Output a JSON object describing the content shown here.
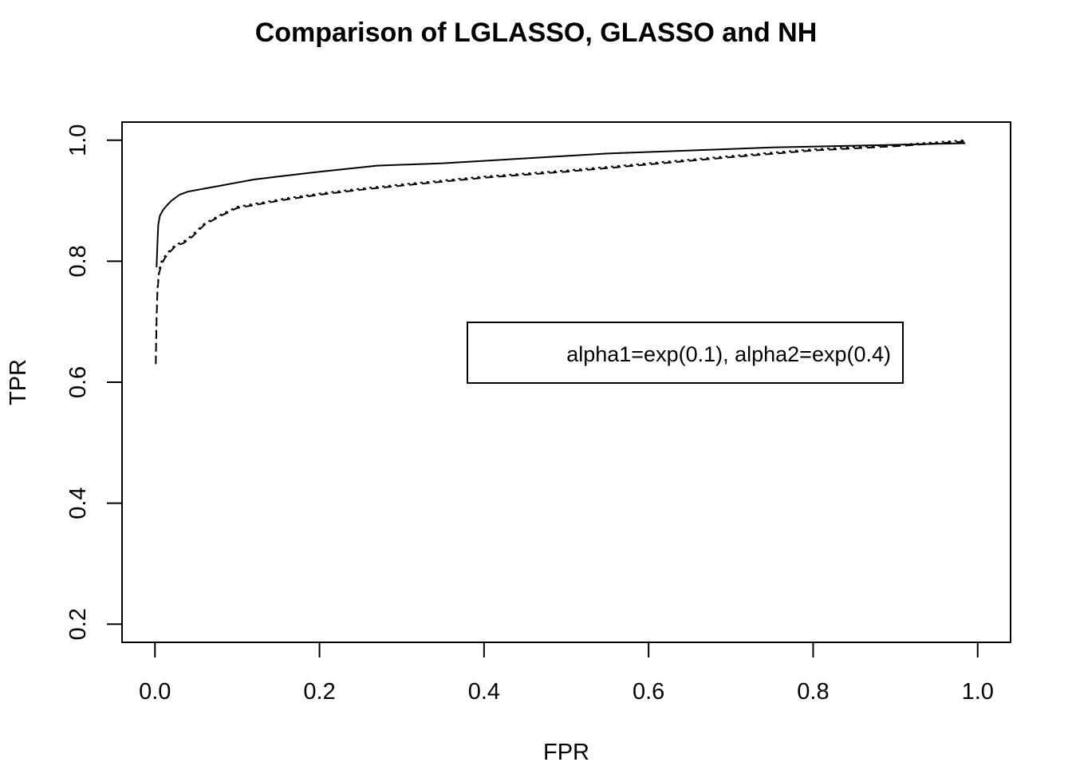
{
  "chart_data": {
    "type": "line",
    "title": "Comparison of LGLASSO, GLASSO  and NH",
    "xlabel": "FPR",
    "ylabel": "TPR",
    "xlim": [
      -0.04,
      1.04
    ],
    "ylim": [
      0.17,
      1.03
    ],
    "x_ticks": [
      0.0,
      0.2,
      0.4,
      0.6,
      0.8,
      1.0
    ],
    "x_tick_labels": [
      "0.0",
      "0.2",
      "0.4",
      "0.6",
      "0.8",
      "1.0"
    ],
    "y_ticks": [
      0.2,
      0.4,
      0.6,
      0.8,
      1.0
    ],
    "y_tick_labels": [
      "0.2",
      "0.4",
      "0.6",
      "0.8",
      "1.0"
    ],
    "grid": false,
    "legend": {
      "placement": "center-right",
      "entries": [
        "alpha1=exp(0.1), alpha2=exp(0.4)"
      ]
    },
    "series": [
      {
        "style": "solid",
        "x": [
          0.002,
          0.003,
          0.004,
          0.006,
          0.01,
          0.015,
          0.02,
          0.03,
          0.04,
          0.06,
          0.08,
          0.1,
          0.12,
          0.15,
          0.2,
          0.27,
          0.35,
          0.45,
          0.55,
          0.65,
          0.75,
          0.85,
          0.95,
          0.985
        ],
        "y": [
          0.79,
          0.83,
          0.86,
          0.875,
          0.885,
          0.893,
          0.9,
          0.91,
          0.915,
          0.92,
          0.925,
          0.93,
          0.935,
          0.94,
          0.948,
          0.958,
          0.962,
          0.97,
          0.978,
          0.983,
          0.988,
          0.991,
          0.994,
          0.995
        ]
      },
      {
        "style": "dashed",
        "x": [
          0.001,
          0.002,
          0.003,
          0.005,
          0.008,
          0.012,
          0.018,
          0.025,
          0.035,
          0.045,
          0.06,
          0.08,
          0.1,
          0.13,
          0.16,
          0.2,
          0.25,
          0.3,
          0.4,
          0.5,
          0.6,
          0.7,
          0.8,
          0.9,
          0.985
        ],
        "y": [
          0.63,
          0.7,
          0.75,
          0.78,
          0.795,
          0.805,
          0.815,
          0.825,
          0.83,
          0.84,
          0.86,
          0.875,
          0.888,
          0.895,
          0.902,
          0.91,
          0.918,
          0.925,
          0.938,
          0.948,
          0.96,
          0.972,
          0.983,
          0.99,
          0.998
        ]
      },
      {
        "style": "dotted",
        "x": [
          0.001,
          0.002,
          0.003,
          0.005,
          0.008,
          0.012,
          0.018,
          0.025,
          0.035,
          0.045,
          0.06,
          0.08,
          0.1,
          0.13,
          0.16,
          0.2,
          0.25,
          0.3,
          0.4,
          0.5,
          0.6,
          0.7,
          0.8,
          0.9,
          0.985
        ],
        "y": [
          0.64,
          0.71,
          0.755,
          0.785,
          0.8,
          0.808,
          0.818,
          0.827,
          0.833,
          0.843,
          0.862,
          0.877,
          0.89,
          0.897,
          0.904,
          0.912,
          0.92,
          0.927,
          0.94,
          0.95,
          0.962,
          0.974,
          0.985,
          0.992,
          1.0
        ]
      }
    ]
  }
}
